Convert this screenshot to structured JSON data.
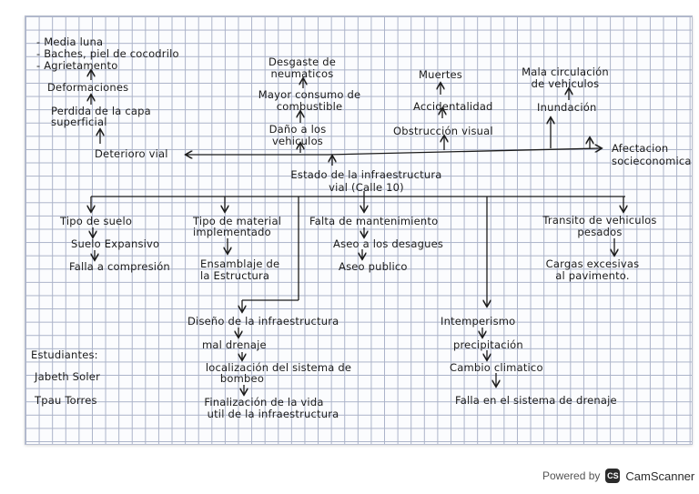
{
  "title": [
    "Estado de la infraestructura",
    "vial (Calle 10)"
  ],
  "deterioro": {
    "head": "Deterioro vial",
    "list": [
      "- Media luna",
      "- Baches, piel de cocodrilo",
      "- Agrietamento"
    ],
    "deformaciones": "Deformaciones",
    "perdida": [
      "Perdida de la capa",
      "superficial"
    ]
  },
  "vehiculos": {
    "dano": [
      "Daño a los",
      "vehiculos"
    ],
    "consumo": [
      "Mayor consumo de",
      "combustible"
    ],
    "desgaste": [
      "Desgaste de",
      "neumaticos"
    ]
  },
  "accidentes": {
    "obstruccion": "Obstrucción visual",
    "accidentalidad": "Accidentalidad",
    "muertes": "Muertes"
  },
  "inundacion": {
    "label": "Inundación",
    "circulacion": [
      "Mala circulación",
      "de vehiculos"
    ]
  },
  "afectacion": [
    "Afectacion",
    "socieconomica"
  ],
  "causes": {
    "suelo": [
      "Tipo de suelo",
      "Suelo Expansivo",
      "Falla a compresión"
    ],
    "material": [
      "Tipo de material",
      "implementado",
      "Ensamblaje de",
      "la Estructura"
    ],
    "mantenimiento": [
      "Falta de mantenimiento",
      "Aseo a los desagues",
      "Aseo publico"
    ],
    "transito": [
      "Transito de vehiculos",
      "pesados",
      "Cargas excesivas",
      "al pavimento."
    ]
  },
  "diseno": [
    "Diseño de la infraestructura",
    "mal drenaje",
    "localización del sistema de",
    "bombeo",
    "Finalización de la vida",
    "util de la infraestructura"
  ],
  "intemperismo": [
    "Intemperismo",
    "precipitación",
    "Cambio climatico",
    "Falla en el sistema de drenaje"
  ],
  "estudiantes": {
    "label": "Estudiantes:",
    "names": [
      "Jabeth Soler",
      "Tpau Torres"
    ]
  },
  "watermark": {
    "powered": "Powered by",
    "logo": "CS",
    "brand": "CamScanner"
  },
  "colors": {
    "ink": "#1b1b1b",
    "grid": "#aab2c8"
  }
}
